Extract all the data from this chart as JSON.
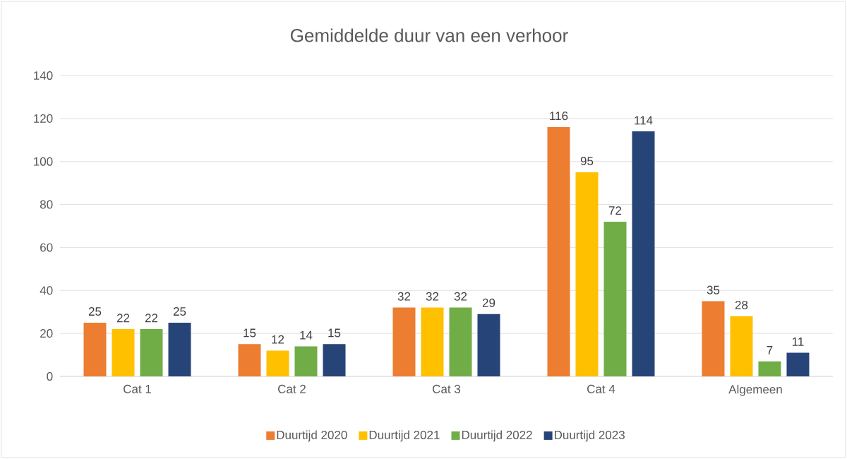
{
  "chart_data": {
    "type": "bar",
    "title": "Gemiddelde duur van een verhoor",
    "categories": [
      "Cat 1",
      "Cat 2",
      "Cat 3",
      "Cat 4",
      "Algemeen"
    ],
    "series": [
      {
        "name": "Duurtijd 2020",
        "color": "#ed7d31",
        "values": [
          25,
          15,
          32,
          116,
          35
        ]
      },
      {
        "name": "Duurtijd 2021",
        "color": "#ffc000",
        "values": [
          22,
          12,
          32,
          95,
          28
        ]
      },
      {
        "name": "Duurtijd 2022",
        "color": "#70ad47",
        "values": [
          22,
          14,
          32,
          72,
          7
        ]
      },
      {
        "name": "Duurtijd 2023",
        "color": "#264478",
        "values": [
          25,
          15,
          29,
          114,
          11
        ]
      }
    ],
    "ylim": [
      0,
      140
    ],
    "yticks": [
      0,
      20,
      40,
      60,
      80,
      100,
      120,
      140
    ],
    "grid": "y",
    "legend": "bottom",
    "data_labels": true
  }
}
